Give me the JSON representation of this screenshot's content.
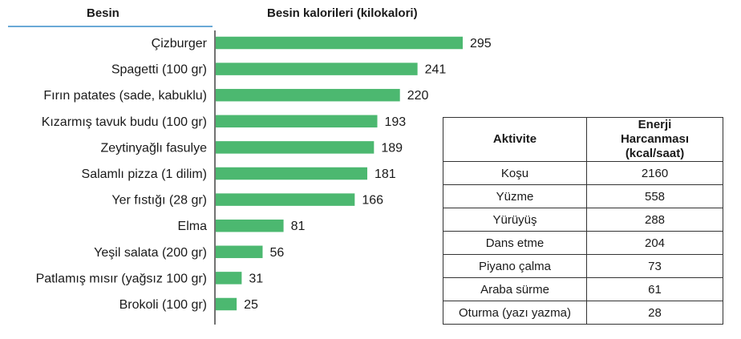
{
  "headers": {
    "food": "Besin",
    "calories": "Besin kalorileri (kilokalori)"
  },
  "chart_data": {
    "type": "bar",
    "orientation": "horizontal",
    "title": "Besin kalorileri (kilokalori)",
    "categories": [
      "Çizburger",
      "Spagetti (100 gr)",
      "Fırın patates (sade, kabuklu)",
      "Kızarmış tavuk budu (100 gr)",
      "Zeytinyağlı fasulye",
      "Salamlı pizza (1 dilim)",
      "Yer fıstığı (28 gr)",
      "Elma",
      "Yeşil salata (200 gr)",
      "Patlamış mısır (yağsız 100 gr)",
      "Brokoli (100 gr)"
    ],
    "values": [
      295,
      241,
      220,
      193,
      189,
      181,
      166,
      81,
      56,
      31,
      25
    ],
    "color": "#4cb870"
  },
  "table": {
    "headers": [
      "Aktivite",
      "Enerji Harcanması (kcal/saat)"
    ],
    "rows": [
      [
        "Koşu",
        "2160"
      ],
      [
        "Yüzme",
        "558"
      ],
      [
        "Yürüyüş",
        "288"
      ],
      [
        "Dans etme",
        "204"
      ],
      [
        "Piyano çalma",
        "73"
      ],
      [
        "Araba sürme",
        "61"
      ],
      [
        "Oturma (yazı yazma)",
        "28"
      ]
    ]
  }
}
